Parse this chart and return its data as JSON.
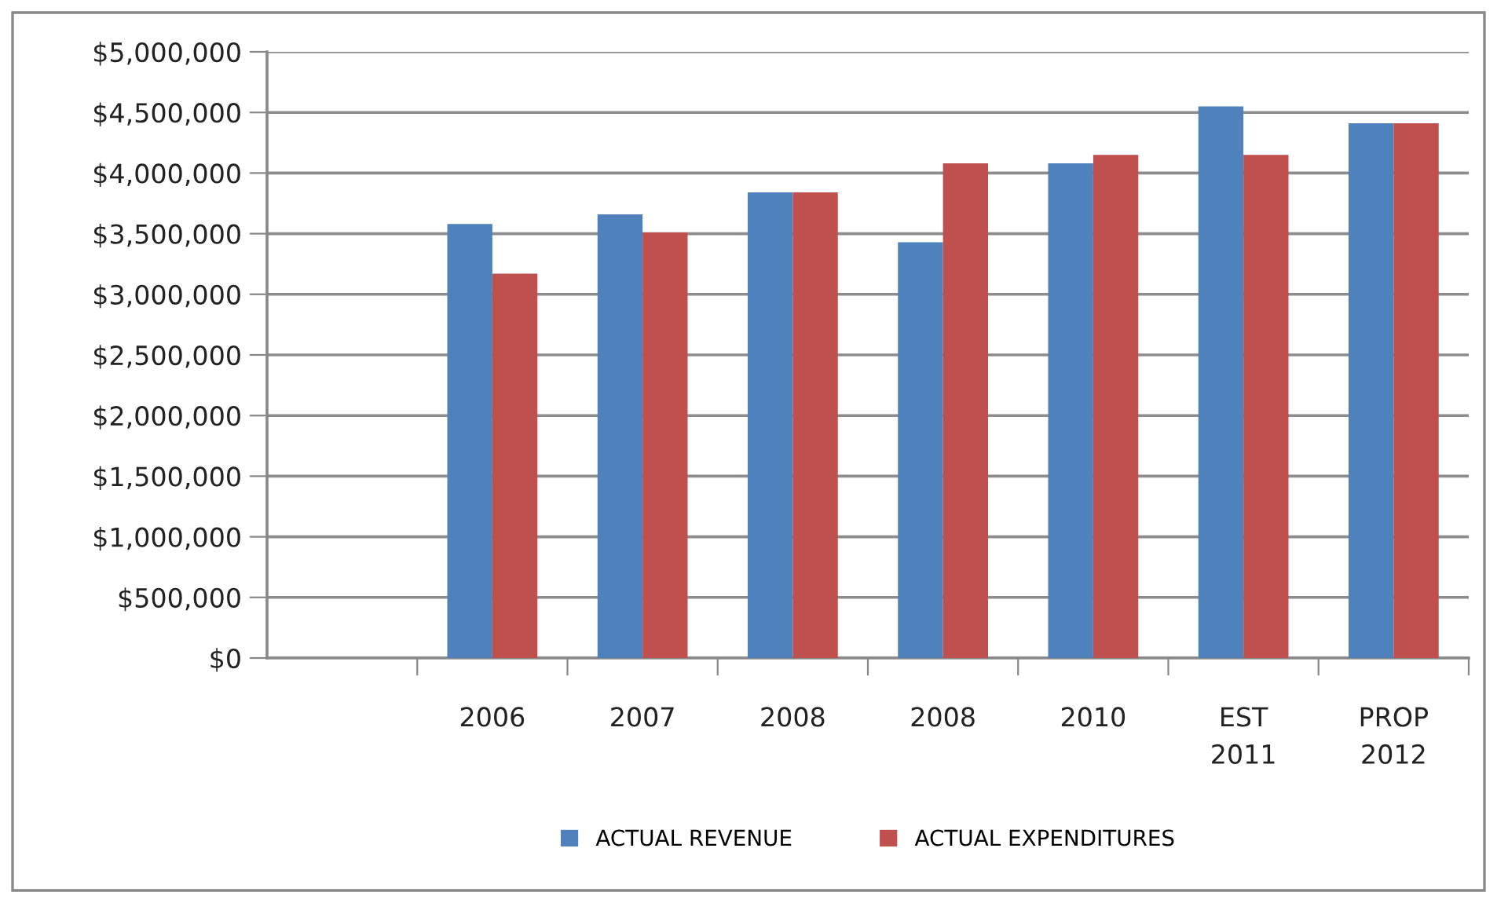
{
  "chart_data": {
    "type": "bar",
    "categories": [
      null,
      "2006",
      "2007",
      "2008",
      "2008",
      "2010",
      "EST\n2011",
      "PROP\n2012"
    ],
    "series": [
      {
        "name": "ACTUAL REVENUE",
        "color": "#4f81bd",
        "values": [
          null,
          3580000,
          3660000,
          3840000,
          3430000,
          4080000,
          4550000,
          4410000
        ]
      },
      {
        "name": "ACTUAL EXPENDITURES",
        "color": "#c0504d",
        "values": [
          null,
          3170000,
          3510000,
          3840000,
          4080000,
          4150000,
          4150000,
          4410000
        ]
      }
    ],
    "ylim": [
      0,
      5000000
    ],
    "yticks": [
      {
        "value": 0,
        "label": "$0"
      },
      {
        "value": 500000,
        "label": "$500,000"
      },
      {
        "value": 1000000,
        "label": "$1,000,000"
      },
      {
        "value": 1500000,
        "label": "$1,500,000"
      },
      {
        "value": 2000000,
        "label": "$2,000,000"
      },
      {
        "value": 2500000,
        "label": "$2,500,000"
      },
      {
        "value": 3000000,
        "label": "$3,000,000"
      },
      {
        "value": 3500000,
        "label": "$3,500,000"
      },
      {
        "value": 4000000,
        "label": "$4,000,000"
      },
      {
        "value": 4500000,
        "label": "$4,500,000"
      },
      {
        "value": 5000000,
        "label": "$5,000,000"
      }
    ],
    "grid": "y",
    "legend": "bottom"
  }
}
